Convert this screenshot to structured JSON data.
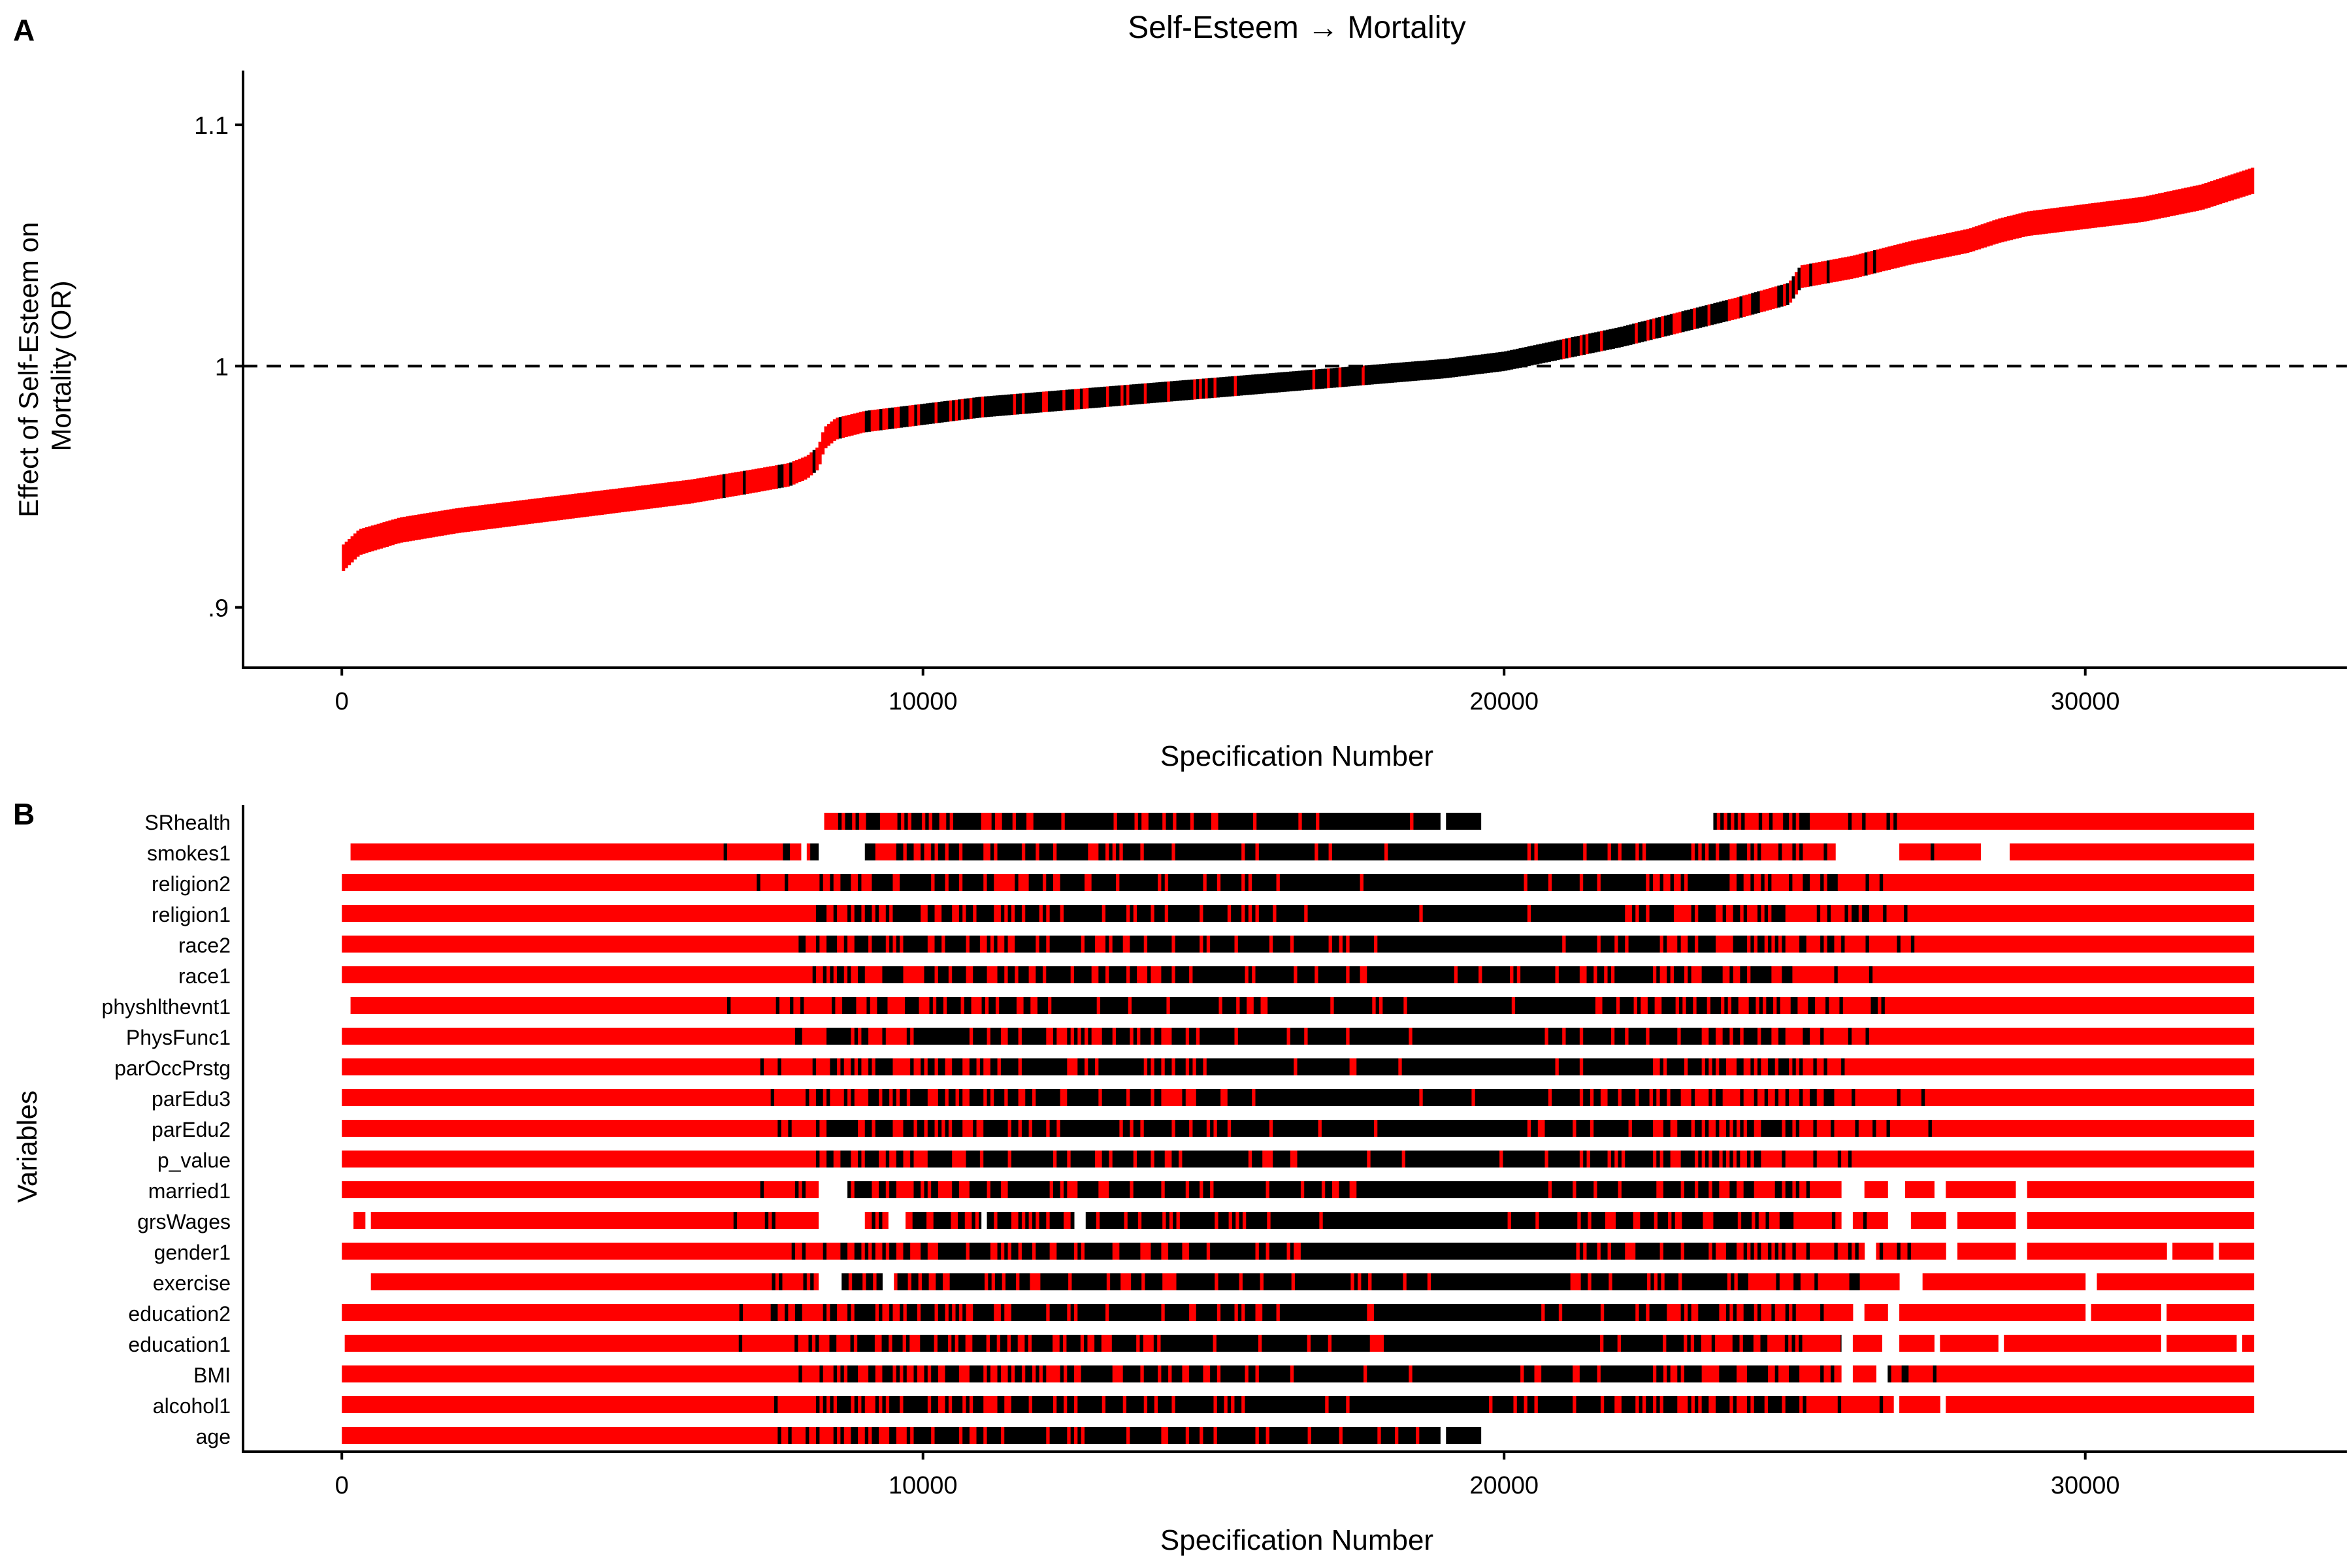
{
  "panels": {
    "a_label": "A",
    "b_label": "B"
  },
  "colors": {
    "positive": "#ff0000",
    "negative": "#000000",
    "axis": "#000000"
  },
  "chart_data": [
    {
      "type": "line",
      "panel": "A",
      "title": "Self-Esteem → Mortality",
      "xlabel": "Specification Number",
      "ylabel_line1": "Effect of Self-Esteem on",
      "ylabel_line2": "Mortality (OR)",
      "xlim": [
        -1700,
        34500
      ],
      "ylim": [
        0.875,
        1.1225
      ],
      "xticks": [
        0,
        10000,
        20000,
        30000
      ],
      "xtick_labels": [
        "0",
        "10000",
        "20000",
        "30000"
      ],
      "yticks": [
        0.9,
        1.0,
        1.1
      ],
      "ytick_labels": [
        ".9",
        "1",
        "1.1"
      ],
      "reference_line": 1.0,
      "series": [
        {
          "x": [
            0,
            300,
            1000,
            2000,
            3000,
            4000,
            5000,
            6000,
            7000,
            7700,
            8000,
            8200,
            8300,
            8500,
            9000,
            10000,
            11000,
            12000,
            13000,
            14000,
            15000,
            16000,
            17000,
            18000,
            19000,
            20000,
            21000,
            22000,
            23000,
            24000,
            24900,
            25100,
            26000,
            27000,
            28000,
            28500,
            29000,
            30000,
            31000,
            32000,
            32900
          ],
          "y": [
            0.92,
            0.927,
            0.932,
            0.936,
            0.939,
            0.942,
            0.945,
            0.948,
            0.952,
            0.955,
            0.958,
            0.962,
            0.97,
            0.974,
            0.977,
            0.98,
            0.983,
            0.985,
            0.987,
            0.989,
            0.991,
            0.993,
            0.995,
            0.997,
            0.999,
            1.002,
            1.007,
            1.012,
            1.018,
            1.024,
            1.03,
            1.037,
            1.041,
            1.047,
            1.052,
            1.056,
            1.059,
            1.062,
            1.065,
            1.07,
            1.077
          ]
        }
      ]
    },
    {
      "type": "heatmap",
      "panel": "B",
      "xlabel": "Specification Number",
      "ylabel": "Variables",
      "xlim": [
        -1700,
        34500
      ],
      "xticks": [
        0,
        10000,
        20000,
        30000
      ],
      "xtick_labels": [
        "0",
        "10000",
        "20000",
        "30000"
      ],
      "variables": [
        {
          "name": "SRhealth",
          "segments": [
            [
              8300,
              18900
            ],
            [
              19000,
              19600
            ],
            [
              23600,
              24900
            ],
            [
              24900,
              32900
            ]
          ]
        },
        {
          "name": "smokes1",
          "segments": [
            [
              150,
              7900
            ],
            [
              8000,
              8200
            ],
            [
              9000,
              25700
            ],
            [
              26800,
              28200
            ],
            [
              28700,
              32900
            ]
          ]
        },
        {
          "name": "religion2",
          "segments": [
            [
              0,
              32900
            ]
          ]
        },
        {
          "name": "religion1",
          "segments": [
            [
              0,
              32900
            ]
          ]
        },
        {
          "name": "race2",
          "segments": [
            [
              0,
              32900
            ]
          ]
        },
        {
          "name": "race1",
          "segments": [
            [
              0,
              32900
            ]
          ]
        },
        {
          "name": "physhlthevnt1",
          "segments": [
            [
              150,
              32900
            ]
          ]
        },
        {
          "name": "PhysFunc1",
          "segments": [
            [
              0,
              32900
            ]
          ]
        },
        {
          "name": "parOccPrstg",
          "segments": [
            [
              0,
              32900
            ]
          ]
        },
        {
          "name": "parEdu3",
          "segments": [
            [
              0,
              32900
            ]
          ]
        },
        {
          "name": "parEdu2",
          "segments": [
            [
              0,
              32900
            ]
          ]
        },
        {
          "name": "p_value",
          "segments": [
            [
              0,
              32900
            ]
          ]
        },
        {
          "name": "married1",
          "segments": [
            [
              0,
              8200
            ],
            [
              8700,
              25800
            ],
            [
              26200,
              26600
            ],
            [
              26900,
              27400
            ],
            [
              27600,
              28800
            ],
            [
              29000,
              32900
            ]
          ]
        },
        {
          "name": "grsWages",
          "segments": [
            [
              200,
              400
            ],
            [
              500,
              8200
            ],
            [
              9000,
              9400
            ],
            [
              9700,
              11000
            ],
            [
              11100,
              12600
            ],
            [
              12800,
              25800
            ],
            [
              26000,
              26600
            ],
            [
              27000,
              27600
            ],
            [
              27800,
              28800
            ],
            [
              29000,
              32900
            ]
          ]
        },
        {
          "name": "gender1",
          "segments": [
            [
              0,
              26200
            ],
            [
              26400,
              27600
            ],
            [
              27800,
              28800
            ],
            [
              29000,
              31400
            ],
            [
              31500,
              32200
            ],
            [
              32300,
              32900
            ]
          ]
        },
        {
          "name": "exercise",
          "segments": [
            [
              500,
              8200
            ],
            [
              8600,
              9300
            ],
            [
              9500,
              26800
            ],
            [
              27200,
              30000
            ],
            [
              30200,
              32900
            ]
          ]
        },
        {
          "name": "education2",
          "segments": [
            [
              0,
              26000
            ],
            [
              26200,
              26600
            ],
            [
              26800,
              30000
            ],
            [
              30100,
              31300
            ],
            [
              31400,
              32900
            ]
          ]
        },
        {
          "name": "education1",
          "segments": [
            [
              50,
              25800
            ],
            [
              26000,
              26500
            ],
            [
              26800,
              27400
            ],
            [
              27500,
              28500
            ],
            [
              28600,
              31300
            ],
            [
              31400,
              32600
            ],
            [
              32700,
              32900
            ]
          ]
        },
        {
          "name": "BMI",
          "segments": [
            [
              0,
              25800
            ],
            [
              26000,
              26400
            ],
            [
              26600,
              32900
            ]
          ]
        },
        {
          "name": "alcohol1",
          "segments": [
            [
              0,
              26700
            ],
            [
              26800,
              27500
            ],
            [
              27600,
              32900
            ]
          ]
        },
        {
          "name": "age",
          "segments": [
            [
              0,
              18900
            ],
            [
              19000,
              19600
            ]
          ]
        }
      ],
      "color_rule": "black where effect < 1, red where effect >= 1"
    }
  ]
}
